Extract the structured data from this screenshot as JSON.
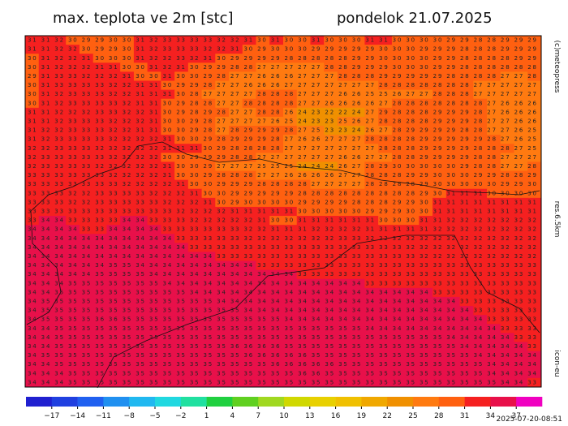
{
  "header": {
    "title": "max. teplota ve 2m [stc]",
    "date": "pondelok 21.07.2025"
  },
  "side": {
    "copyright": "(c)meteopress",
    "resolution": "res.6.5km",
    "model": "icon-eu"
  },
  "footer": {
    "timestamp": "2025-07-20-08:51"
  },
  "grid": {
    "rows": [
      "31 31 32 30 29 29 30 30 31 32 33 33 33 33 32 32 31 30 31 30 30 31 30 30 30 31 31 30 30 30 30 29 29 28 28 29 29 29",
      "31 31 32 32 30 29 29 30 31 32 33 33 33 32 32 31 30 29 30 30 30 29 29 29 29 29 30 30 30 29 29 29 28 28 28 29 29 29",
      "30 31 32 32 31 30 30 30 31 32 32 33 32 31 30 29 29 29 29 28 28 28 28 28 29 29 30 30 30 30 29 29 28 28 28 28 29 29",
      "30 31 32 32 32 31 31 30 30 31 32 31 30 29 29 28 28 27 27 27 27 27 28 28 29 29 29 30 30 30 29 29 28 28 28 28 28 28",
      "29 31 33 33 32 32 32 31 30 30 31 30 30 29 28 27 27 26 26 26 27 27 27 28 28 28 29 29 29 29 29 28 28 28 28 27 27 28",
      "30 31 33 33 33 33 32 32 31 31 30 29 29 28 27 27 26 26 26 27 27 27 27 27 27 27 28 28 28 28 28 28 28 27 27 27 27 27",
      "30 31 32 33 33 33 32 32 31 31 31 30 28 27 27 27 27 28 28 28 27 27 27 26 26 25 25 26 27 27 28 28 28 27 27 27 27 27",
      "30 31 32 33 33 33 33 32 31 31 30 29 28 28 27 27 28 28 28 28 27 27 26 26 26 26 27 28 28 28 28 28 28 28 27 26 26 26",
      "31 31 32 32 32 33 33 32 32 31 30 29 28 29 28 27 27 28 28 26 24 23 22 22 24 27 29 28 28 28 29 29 29 28 27 26 26 26",
      "31 31 32 33 33 33 32 32 32 31 30 30 29 28 27 27 27 27 26 25 24 23 23 25 26 27 28 28 28 28 29 29 29 28 27 27 26 26",
      "31 32 32 33 33 33 32 32 31 31 30 30 29 28 27 28 29 29 29 28 27 25 23 23 24 26 27 28 29 29 29 29 28 28 27 27 26 25",
      "31 32 33 33 33 33 32 32 32 32 31 30 30 29 28 29 29 29 28 27 26 26 27 27 27 28 28 28 28 29 29 29 29 29 28 27 26 25",
      "32 32 33 33 33 32 32 32 32 32 31 31 31 30 29 28 28 28 28 27 27 27 27 27 27 27 28 28 28 29 29 29 29 28 28 28 27 25",
      "32 33 33 33 33 33 32 32 32 32 30 30 29 29 29 28 28 27 27 27 27 27 27 26 26 27 27 28 28 29 29 29 29 28 28 27 27 27",
      "32 33 33 33 33 32 32 32 32 32 31 30 30 29 27 27 27 25 25 25 24 24 24 26 27 28 29 30 30 30 30 30 29 28 28 27 27 28",
      "33 33 33 33 33 33 32 32 32 32 31 30 30 29 28 28 28 27 27 26 26 26 26 27 27 28 28 28 29 29 30 30 30 29 29 28 28 29",
      "33 33 33 33 33 33 33 32 32 32 32 31 30 30 29 29 29 28 28 28 28 27 27 27 27 28 28 28 28 29 30 30 30 30 30 29 29 30",
      "33 33 33 32 32 33 33 33 33 32 32 32 31 30 30 29 29 29 29 29 28 28 28 28 28 28 28 28 28 29 30 31 31 31 30 30 30 30",
      "33 33 33 32 32 33 33 33 33 33 32 32 32 31 30 29 30 30 30 30 29 29 29 29 28 28 28 29 29 30 31 31 31 31 31 31 31 31",
      "33 33 33 33 33 33 33 33 33 33 33 32 32 32 32 31 31 31 31 31 30 30 30 30 30 29 29 29 30 30 31 31 31 31 31 31 31 31",
      "33 34 34 33 33 33 33 34 34 33 33 33 32 32 32 32 32 31 30 30 31 31 31 31 31 31 30 30 30 31 31 32 32 32 32 32 32 32",
      "34 34 34 34 33 33 34 34 34 34 33 33 33 33 33 33 32 32 31 31 31 32 32 32 32 31 31 31 31 31 32 32 32 32 32 32 32 32",
      "34 34 34 34 34 34 34 34 34 34 34 33 33 33 33 33 32 32 32 32 32 32 32 33 33 32 32 32 32 32 32 32 32 32 32 32 32 32",
      "34 34 34 34 34 34 34 34 34 34 34 34 33 33 33 33 33 33 33 33 33 33 33 33 33 33 33 33 32 32 32 32 32 32 32 32 32 32",
      "34 34 34 34 34 34 34 34 34 34 34 34 34 34 33 33 33 33 33 33 33 33 33 33 33 33 33 33 33 32 32 32 32 32 32 32 32 32",
      "34 34 34 34 34 34 35 35 34 34 34 34 34 34 34 34 34 33 33 33 33 33 33 33 33 33 33 33 33 33 33 33 33 33 33 33 33 33",
      "34 34 34 34 34 35 35 35 35 34 34 34 34 34 34 34 34 34 34 34 33 33 33 33 33 33 33 33 33 33 33 33 33 33 33 33 33 33",
      "34 34 34 35 35 35 35 35 35 35 34 34 34 34 34 34 34 34 34 34 34 34 34 34 34 33 33 33 33 33 33 33 33 33 33 33 33 33",
      "34 34 35 35 35 35 35 35 35 35 35 35 34 34 34 34 34 34 34 34 34 34 34 34 34 34 34 34 34 34 33 33 33 33 33 33 33 33",
      "34 35 35 35 35 35 35 35 35 35 35 35 35 35 34 34 34 34 34 34 34 34 34 34 34 34 34 34 34 34 34 34 33 33 33 33 33 33",
      "34 35 35 35 35 35 35 35 35 35 35 35 35 35 35 35 34 34 34 34 34 34 34 34 34 34 34 34 34 34 34 34 34 33 33 33 33 33",
      "34 35 35 35 35 36 36 35 35 35 35 35 35 35 35 35 35 35 35 34 34 34 34 34 34 34 34 34 34 34 34 34 34 34 33 33 33 33",
      "34 34 35 35 35 35 35 35 35 35 35 35 35 35 35 35 35 35 35 35 35 35 35 35 35 34 34 34 34 34 34 34 34 34 34 33 33 33",
      "34 34 35 35 35 35 35 35 35 35 35 35 35 35 35 35 35 35 35 35 35 35 35 35 35 35 35 35 35 35 35 34 34 34 34 34 33 33",
      "34 34 35 35 35 35 35 35 35 35 35 35 35 35 35 36 36 36 36 35 35 35 35 35 35 35 35 35 35 35 35 35 34 34 34 34 34 33",
      "34 35 35 35 35 35 35 35 35 35 35 35 35 35 35 35 36 36 36 36 36 35 35 35 35 35 35 35 35 35 35 35 35 34 34 34 34 34",
      "34 34 35 35 35 35 35 35 35 35 35 35 35 35 35 35 35 35 36 36 36 36 36 35 35 35 35 35 35 35 35 35 35 35 34 34 34 34",
      "34 34 34 35 35 35 35 35 35 35 35 35 35 35 35 35 35 35 35 35 36 36 35 35 35 35 35 35 35 35 35 35 35 35 34 34 34 34",
      "34 34 34 35 35 35 35 35 35 35 35 35 35 35 35 35 35 35 35 35 35 35 35 35 35 35 35 35 35 35 35 35 35 35 35 34 34 33"
    ]
  },
  "colorbar": {
    "range": [
      -20,
      40
    ],
    "ticks": [
      {
        "value": -17,
        "label": "−17"
      },
      {
        "value": -14,
        "label": "−14"
      },
      {
        "value": -11,
        "label": "−11"
      },
      {
        "value": -8,
        "label": "−8"
      },
      {
        "value": -5,
        "label": "−5"
      },
      {
        "value": -2,
        "label": "−2"
      },
      1,
      4,
      7,
      10,
      13,
      16,
      19,
      22,
      25,
      28,
      31,
      34,
      37
    ],
    "colors": [
      "#2020d0",
      "#2040e0",
      "#2060f0",
      "#2090f0",
      "#20b8f0",
      "#20d8e0",
      "#20e0a0",
      "#20d040",
      "#60d020",
      "#a0d820",
      "#d0d800",
      "#e8d000",
      "#f0c000",
      "#f0a800",
      "#f09000",
      "#ff7a10",
      "#ff6010",
      "#f52020",
      "#e8104a",
      "#f000c0"
    ]
  }
}
